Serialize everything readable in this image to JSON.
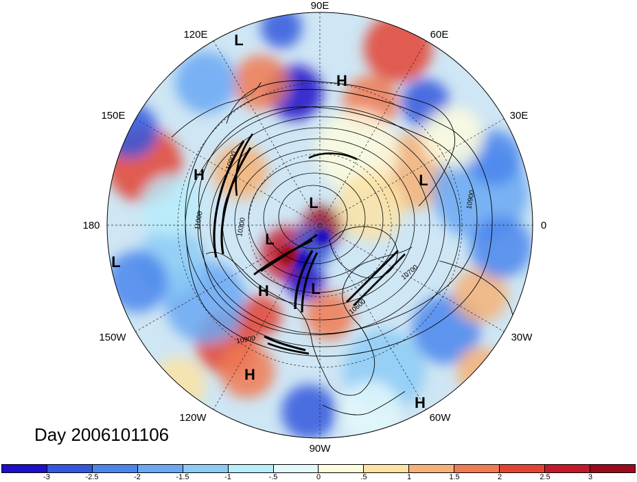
{
  "map": {
    "projection": "north-polar-stereographic",
    "longitude_labels": [
      {
        "text": "90E",
        "lon": 90
      },
      {
        "text": "60E",
        "lon": 60
      },
      {
        "text": "30E",
        "lon": 30
      },
      {
        "text": "0",
        "lon": 0
      },
      {
        "text": "30W",
        "lon": -30
      },
      {
        "text": "60W",
        "lon": -60
      },
      {
        "text": "90W",
        "lon": -90
      },
      {
        "text": "120W",
        "lon": -120
      },
      {
        "text": "150W",
        "lon": -150
      },
      {
        "text": "180",
        "lon": 180
      },
      {
        "text": "150E",
        "lon": 150
      },
      {
        "text": "120E",
        "lon": 120
      }
    ],
    "pressure_centers": [
      {
        "label": "L",
        "name": "low-center-120e"
      },
      {
        "label": "H",
        "name": "high-center-siberia"
      },
      {
        "label": "H",
        "name": "high-center-150e"
      },
      {
        "label": "L",
        "name": "low-center-europe"
      },
      {
        "label": "L",
        "name": "low-center-pole"
      },
      {
        "label": "L",
        "name": "low-center-beaufort"
      },
      {
        "label": "L",
        "name": "low-center-180"
      },
      {
        "label": "H",
        "name": "high-center-alaska"
      },
      {
        "label": "L",
        "name": "low-center-hudson"
      },
      {
        "label": "H",
        "name": "high-center-pacific"
      },
      {
        "label": "H",
        "name": "high-center-atlantic"
      }
    ],
    "contour_labels": [
      "10900",
      "11000",
      "10300",
      "10900",
      "10700",
      "10600",
      "10900"
    ],
    "title": "Day 2006101106"
  },
  "colorbar": {
    "colors": [
      "#1d10c8",
      "#3357dd",
      "#4a86ec",
      "#6aa8f3",
      "#8ccbf6",
      "#b7ecfa",
      "#e3f8fa",
      "#fdfbde",
      "#fbe3a4",
      "#f6b176",
      "#f07a52",
      "#e34333",
      "#c21a28",
      "#9c0a1e"
    ],
    "tick_labels": [
      "-3",
      "-2.5",
      "-2",
      "-1.5",
      "-1",
      "-.5",
      "0",
      ".5",
      "1",
      "1.5",
      "2",
      "2.5",
      "3"
    ]
  }
}
